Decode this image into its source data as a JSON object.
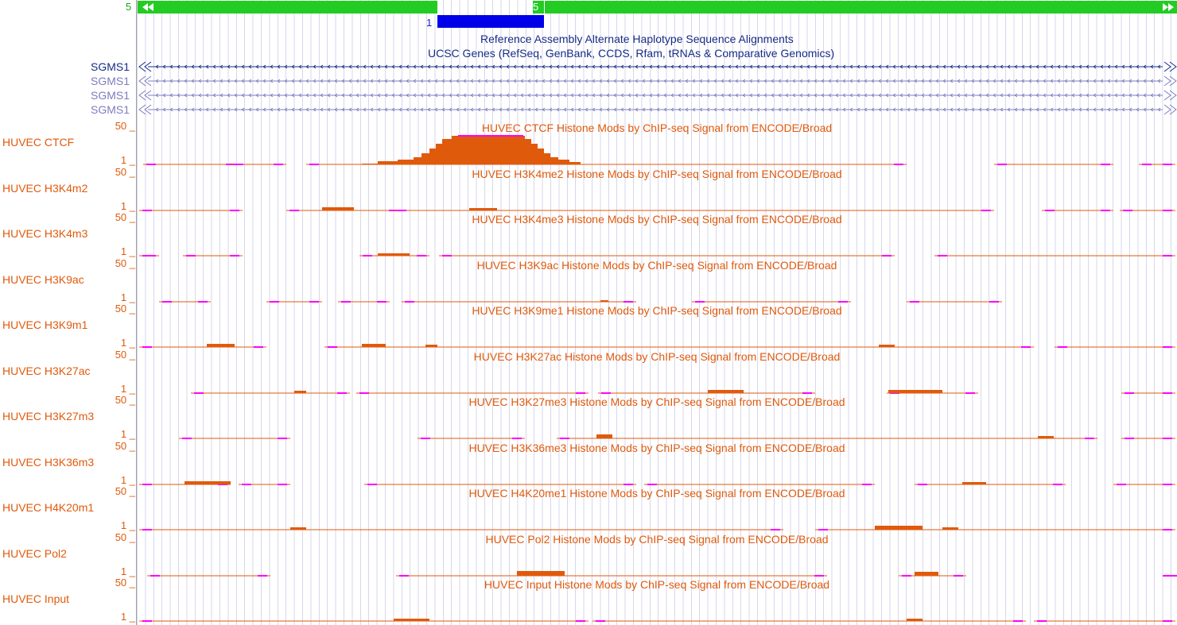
{
  "alt_haplotype": {
    "left_label": "5",
    "mid_label": "5",
    "blue_label": "1",
    "track_title": "Reference Assembly Alternate Haplotype Sequence Alignments",
    "color": "#22cc22",
    "blue_color": "#0000e8"
  },
  "genes": {
    "track_title": "UCSC Genes (RefSeq, GenBank, CCDS, Rfam, tRNAs & Comparative Genomics)",
    "names": [
      "SGMS1",
      "SGMS1",
      "SGMS1",
      "SGMS1"
    ],
    "colors": [
      "#162c86",
      "#7c7cbf",
      "#7c7cbf",
      "#7c7cbf"
    ]
  },
  "signal_color": "#e05a0c",
  "clip_color": "#ff00ff",
  "tracks": [
    {
      "label": "HUVEC CTCF",
      "title": "HUVEC CTCF Histone Mods by ChIP-seq Signal from ENCODE/Broad",
      "max": "50 _",
      "min": "1 _"
    },
    {
      "label": "HUVEC H3K4m2",
      "title": "HUVEC H3K4me2 Histone Mods by ChIP-seq Signal from ENCODE/Broad",
      "max": "50 _",
      "min": "1 _"
    },
    {
      "label": "HUVEC H3K4m3",
      "title": "HUVEC H3K4me3 Histone Mods by ChIP-seq Signal from ENCODE/Broad",
      "max": "50 _",
      "min": "1 _"
    },
    {
      "label": "HUVEC H3K9ac",
      "title": "HUVEC H3K9ac Histone Mods by ChIP-seq Signal from ENCODE/Broad",
      "max": "50 _",
      "min": "1 _"
    },
    {
      "label": "HUVEC H3K9m1",
      "title": "HUVEC H3K9me1 Histone Mods by ChIP-seq Signal from ENCODE/Broad",
      "max": "50 _",
      "min": "1 _"
    },
    {
      "label": "HUVEC H3K27ac",
      "title": "HUVEC H3K27ac Histone Mods by ChIP-seq Signal from ENCODE/Broad",
      "max": "50 _",
      "min": "1 _"
    },
    {
      "label": "HUVEC H3K27m3",
      "title": "HUVEC H3K27me3 Histone Mods by ChIP-seq Signal from ENCODE/Broad",
      "max": "50 _",
      "min": "1 _"
    },
    {
      "label": "HUVEC H3K36m3",
      "title": "HUVEC H3K36me3 Histone Mods by ChIP-seq Signal from ENCODE/Broad",
      "max": "50 _",
      "min": "1 _"
    },
    {
      "label": "HUVEC H4K20m1",
      "title": "HUVEC H4K20me1 Histone Mods by ChIP-seq Signal from ENCODE/Broad",
      "max": "50 _",
      "min": "1 _"
    },
    {
      "label": "HUVEC Pol2",
      "title": "HUVEC Pol2 Histone Mods by ChIP-seq Signal from ENCODE/Broad",
      "max": "50 _",
      "min": "1 _"
    },
    {
      "label": "HUVEC Input",
      "title": "HUVEC Input Histone Mods by ChIP-seq Signal from ENCODE/Broad",
      "max": "50 _",
      "min": "1 _"
    }
  ]
}
